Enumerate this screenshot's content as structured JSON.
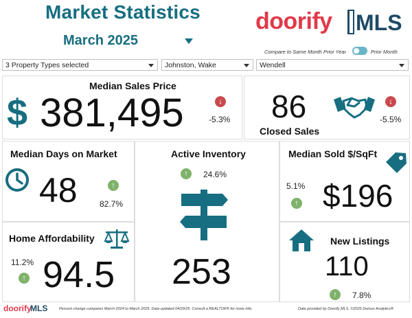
{
  "header": {
    "title": "Market Statistics",
    "period": "March 2025",
    "brand_name": "doorify",
    "brand_mls": "MLS",
    "compare_left": "Compare to Same Month Prior Year",
    "compare_right": "Prior Month"
  },
  "filters": {
    "property_types": "3 Property Types selected",
    "county": "Johnston, Wake",
    "city": "Wendell"
  },
  "metrics": {
    "median_sales_price": {
      "label": "Median Sales Price",
      "currency": "$",
      "value": "381,495",
      "change": "-5.3%",
      "direction": "down"
    },
    "closed_sales": {
      "label": "Closed Sales",
      "value": "86",
      "change": "-5.5%",
      "direction": "down"
    },
    "median_dom": {
      "label": "Median Days on Market",
      "value": "48",
      "change": "82.7%",
      "direction": "up"
    },
    "active_inventory": {
      "label": "Active Inventory",
      "value": "253",
      "change": "24.6%",
      "direction": "up"
    },
    "median_sold_sqft": {
      "label": "Median Sold $/SqFt",
      "value": "$196",
      "change": "5.1%",
      "direction": "up"
    },
    "home_affordability": {
      "label": "Home Affordability",
      "value": "94.5",
      "change": "11.2%",
      "direction": "up"
    },
    "new_listings": {
      "label": "New Listings",
      "value": "110",
      "change": "7.8%",
      "direction": "up"
    }
  },
  "footer": {
    "brand_name": "doorify",
    "brand_mls": "MLS",
    "note": "Percent change compares March 2024 to March 2025.  Data updated 04/29/25.  Consult a REALTOR® for more info.",
    "provider": "Data provided by Doorify MLS. ©2025 Domus Analytics®"
  },
  "colors": {
    "teal": "#176e80",
    "red": "#c94a4e",
    "green": "#7fb26a",
    "brand_red": "#e03a4a"
  }
}
